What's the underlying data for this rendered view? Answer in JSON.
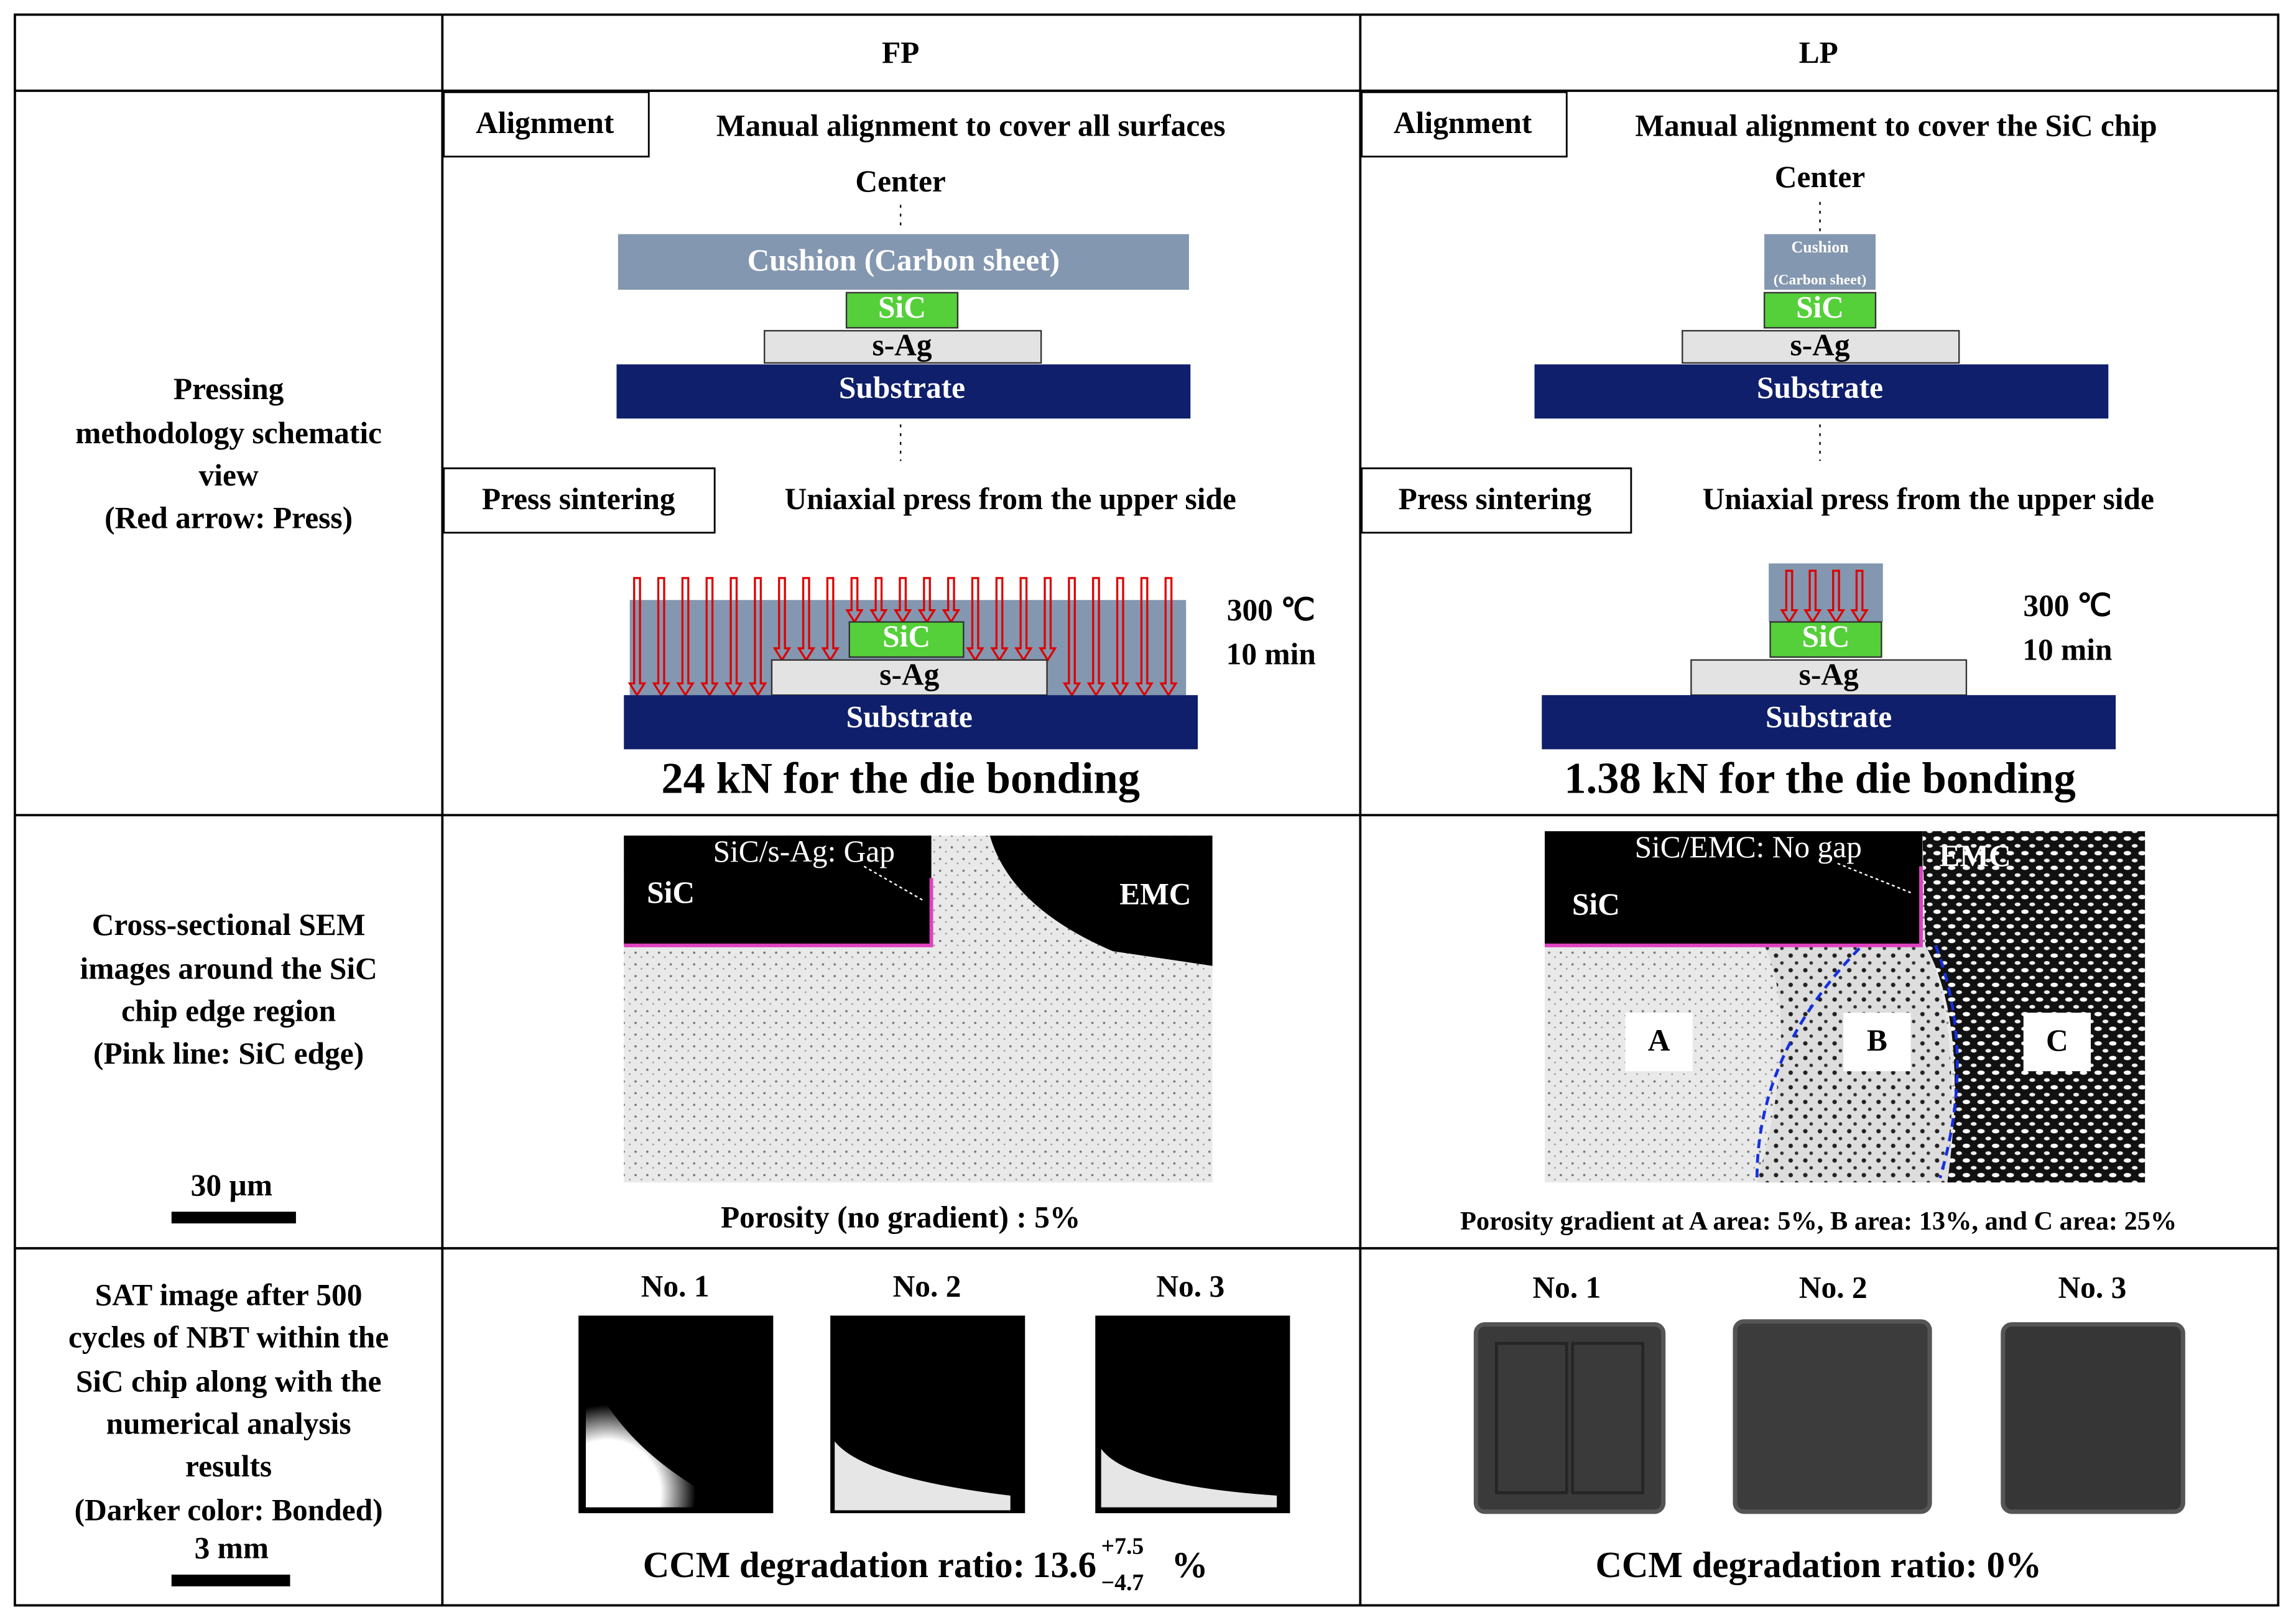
{
  "header": {
    "fp": "FP",
    "lp": "LP"
  },
  "rows": [
    {
      "label": [
        "Pressing",
        "methodology schematic",
        "view",
        "(Red arrow: Press)"
      ],
      "fp": {
        "alignment": "Alignment",
        "alignment_text": "Manual alignment to cover all surfaces",
        "center": "Center",
        "cushion": "Cushion (Carbon sheet)",
        "sic": "SiC",
        "sag": "s-Ag",
        "substrate": "Substrate",
        "press": "Press sintering",
        "press_text": "Uniaxial press from the upper side",
        "sic2": "SiC",
        "sag2": "s-Ag",
        "substrate2": "Substrate",
        "temp": "300 ℃",
        "time": "10 min",
        "force": "24 kN for the die bonding"
      },
      "lp": {
        "alignment": "Alignment",
        "alignment_text": "Manual alignment to cover the SiC chip",
        "center": "Center",
        "cushion": [
          "Cushion",
          "(Carbon sheet)"
        ],
        "sic": "SiC",
        "sag": "s-Ag",
        "substrate": "Substrate",
        "press": "Press sintering",
        "press_text": "Uniaxial press from the upper side",
        "sic2": "SiC",
        "sag2": "s-Ag",
        "substrate2": "Substrate",
        "temp": "300 ℃",
        "time": "10 min",
        "force": "1.38 kN for the die bonding"
      }
    },
    {
      "label": [
        "Cross-sectional SEM",
        "images around the SiC",
        "chip edge region",
        "(Pink line: SiC edge)"
      ],
      "scale": "30 µm",
      "fp": {
        "gap": "SiC/s-Ag: Gap",
        "sic": "SiC",
        "emc": "EMC",
        "caption": "Porosity (no gradient) : 5%"
      },
      "lp": {
        "gap": "SiC/EMC: No gap",
        "emc": "EMC",
        "sic": "SiC",
        "a": "A",
        "b": "B",
        "c": "C",
        "caption": "Porosity gradient  at A area: 5%, B area: 13%, and C area: 25%"
      }
    },
    {
      "label": [
        "SAT image after 500",
        "cycles of NBT within the",
        "SiC chip along with the",
        "numerical analysis",
        "results",
        "(Darker color: Bonded)"
      ],
      "scale": "3 mm",
      "fp": {
        "samples": [
          "No. 1",
          "No. 2",
          "No. 3"
        ],
        "ratio_label": "CCM degradation ratio:",
        "ratio": "13.6",
        "plus": "+7.5",
        "minus": "−4.7",
        "unit": "%"
      },
      "lp": {
        "samples": [
          "No. 1",
          "No. 2",
          "No. 3"
        ],
        "ratio_text": "CCM degradation ratio: 0%"
      }
    }
  ]
}
